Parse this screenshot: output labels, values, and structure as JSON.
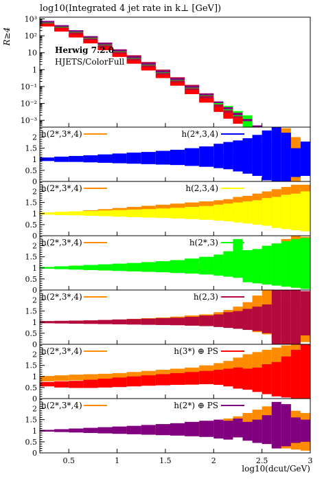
{
  "chart_data": {
    "type": "area",
    "title": "log10(Integrated 4 jet rate in k⊥ [GeV])",
    "xlabel": "log10(dcut/GeV)",
    "xlim": [
      0.2,
      3.0
    ],
    "x_ticks": [
      "0.5",
      "1",
      "1.5",
      "2",
      "2.5",
      "3"
    ],
    "x_tick_values": [
      0.5,
      1.0,
      1.5,
      2.0,
      2.5,
      3.0
    ],
    "bin_edges": [
      0.2,
      0.35,
      0.5,
      0.65,
      0.8,
      0.95,
      1.1,
      1.25,
      1.4,
      1.55,
      1.7,
      1.85,
      2.0,
      2.1,
      2.2,
      2.3,
      2.4,
      2.5,
      2.6,
      2.7,
      2.8,
      2.9,
      3.0
    ],
    "colors": {
      "reference": "#ff8c00",
      "blue": "#0000ff",
      "yellow": "#ffff00",
      "green": "#00ff00",
      "crimson": "#b40a3c",
      "red": "#ff0000",
      "purple": "#800080"
    },
    "main": {
      "ylabel": "R≥4",
      "log_y": true,
      "ylim_exp": [
        -3.4,
        3.1
      ],
      "y_ticks": [
        "10³",
        "10²",
        "10",
        "1",
        "10⁻¹",
        "10⁻²",
        "10⁻³"
      ],
      "y_tick_exponents": [
        3,
        2,
        1,
        0,
        -1,
        -2,
        -3
      ],
      "annotation_line1": "Herwig 7.2.0",
      "annotation_line2": "HJETS/ColorFull",
      "annotation_color": "#888888",
      "series": [
        {
          "key": "crimson",
          "log_lo": [
            2.6,
            2.3,
            1.95,
            1.6,
            1.2,
            0.8,
            0.4,
            0.0,
            -0.45,
            -0.9,
            -1.35,
            -1.85,
            -2.35,
            -2.7,
            -3.1,
            -3.5,
            -3.5,
            -3.5,
            -3.5,
            -3.5,
            -3.5,
            -3.5
          ],
          "log_hi": [
            2.85,
            2.6,
            2.3,
            1.95,
            1.6,
            1.2,
            0.85,
            0.45,
            0.0,
            -0.45,
            -0.9,
            -1.4,
            -1.9,
            -2.25,
            -2.65,
            -3.05,
            -3.3,
            -3.5,
            -3.5,
            -3.5,
            -3.5,
            -3.5
          ]
        },
        {
          "key": "red",
          "log_lo": [
            2.55,
            2.25,
            1.9,
            1.55,
            1.15,
            0.75,
            0.35,
            -0.05,
            -0.5,
            -0.95,
            -1.45,
            -1.95,
            -2.5,
            -2.9,
            -3.2,
            -3.5,
            -3.5,
            -3.5,
            -3.5,
            -3.5,
            -3.5,
            -3.5
          ],
          "log_hi": [
            2.7,
            2.45,
            2.1,
            1.75,
            1.35,
            0.95,
            0.55,
            0.15,
            -0.3,
            -0.75,
            -1.2,
            -1.7,
            -2.2,
            -2.55,
            -2.85,
            -3.2,
            -3.5,
            -3.5,
            -3.5,
            -3.5,
            -3.5,
            -3.5
          ]
        },
        {
          "key": "green",
          "log_lo": [
            2.75,
            2.5,
            2.2,
            1.85,
            1.45,
            1.05,
            0.65,
            0.25,
            -0.2,
            -0.65,
            -1.1,
            -1.55,
            -2.05,
            -2.4,
            -2.75,
            -3.5,
            -3.5,
            -3.5,
            -3.5,
            -3.5,
            -3.5,
            -3.5
          ],
          "log_hi": [
            2.82,
            2.58,
            2.28,
            1.92,
            1.52,
            1.12,
            0.72,
            0.32,
            -0.13,
            -0.58,
            -1.03,
            -1.48,
            -1.95,
            -2.15,
            -2.45,
            -2.7,
            -3.5,
            -3.5,
            -3.5,
            -3.5,
            -3.5,
            -3.5
          ]
        },
        {
          "key": "purple",
          "log_lo": [
            2.78,
            2.53,
            2.23,
            1.88,
            1.48,
            1.08,
            0.68,
            0.28,
            -0.17,
            -0.62,
            -1.07,
            -1.52,
            -1.98,
            -2.35,
            -2.7,
            -3.05,
            -3.5,
            -3.5,
            -3.5,
            -3.5,
            -3.5,
            -3.5
          ],
          "log_hi": [
            2.88,
            2.63,
            2.33,
            1.98,
            1.58,
            1.18,
            0.78,
            0.38,
            -0.07,
            -0.52,
            -0.97,
            -1.42,
            -1.88,
            -2.22,
            -2.55,
            -2.92,
            -3.3,
            -3.5,
            -3.5,
            -3.5,
            -3.5,
            -3.5
          ]
        }
      ]
    },
    "ratio_panels": [
      {
        "label_left": "h(2*,3*,4)",
        "label_right": "h(2*,3,4)",
        "color_key": "blue",
        "lo": [
          0.92,
          0.88,
          0.88,
          0.86,
          0.84,
          0.82,
          0.8,
          0.78,
          0.76,
          0.74,
          0.7,
          0.66,
          0.6,
          0.55,
          0.45,
          0.35,
          0.25,
          0.05,
          0.0,
          0.0,
          0.2,
          0.25
        ],
        "hi": [
          1.08,
          1.12,
          1.15,
          1.18,
          1.22,
          1.26,
          1.3,
          1.33,
          1.38,
          1.43,
          1.5,
          1.58,
          1.7,
          1.78,
          1.85,
          1.95,
          2.1,
          2.3,
          2.5,
          2.2,
          1.5,
          1.8
        ],
        "ref_lo": [
          0.98,
          0.98,
          0.97,
          0.97,
          0.96,
          0.96,
          0.95,
          0.95,
          0.94,
          0.93,
          0.92,
          0.9,
          0.86,
          0.8,
          0.7,
          0.6,
          0.55,
          0.35,
          0.15,
          0.0,
          0.0,
          0.0
        ],
        "ref_hi": [
          1.02,
          1.02,
          1.03,
          1.03,
          1.04,
          1.04,
          1.05,
          1.05,
          1.06,
          1.07,
          1.08,
          1.1,
          1.14,
          1.2,
          1.3,
          1.4,
          1.5,
          1.65,
          1.9,
          2.4,
          2.0,
          0.0
        ]
      },
      {
        "label_left": "h(2*,3*,4)",
        "label_right": "h(2,3,4)",
        "color_key": "yellow",
        "lo": [
          0.95,
          0.93,
          0.92,
          0.9,
          0.88,
          0.86,
          0.84,
          0.82,
          0.8,
          0.78,
          0.75,
          0.72,
          0.68,
          0.65,
          0.6,
          0.55,
          0.5,
          0.45,
          0.35,
          0.3,
          0.25,
          0.2
        ],
        "hi": [
          1.05,
          1.08,
          1.1,
          1.12,
          1.14,
          1.16,
          1.18,
          1.2,
          1.23,
          1.26,
          1.3,
          1.34,
          1.4,
          1.45,
          1.5,
          1.55,
          1.6,
          1.7,
          1.75,
          1.85,
          1.9,
          2.0
        ],
        "ref_lo": [
          0.98,
          0.97,
          0.96,
          0.95,
          0.94,
          0.93,
          0.92,
          0.91,
          0.9,
          0.88,
          0.86,
          0.84,
          0.8,
          0.78,
          0.74,
          0.7,
          0.66,
          0.6,
          0.5,
          0.35,
          0.25,
          0.2
        ],
        "ref_hi": [
          1.02,
          1.06,
          1.1,
          1.15,
          1.2,
          1.25,
          1.3,
          1.35,
          1.4,
          1.45,
          1.5,
          1.55,
          1.6,
          1.65,
          1.75,
          1.8,
          1.9,
          2.0,
          2.1,
          2.2,
          2.3,
          2.3
        ]
      },
      {
        "label_left": "h(2*,3*,4)",
        "label_right": "h(2*,3)",
        "color_key": "green",
        "lo": [
          0.96,
          0.94,
          0.92,
          0.9,
          0.88,
          0.86,
          0.84,
          0.82,
          0.8,
          0.77,
          0.74,
          0.7,
          0.65,
          0.6,
          0.55,
          0.35,
          0.3,
          0.25,
          0.2,
          0.15,
          0.1,
          0.05
        ],
        "hi": [
          1.04,
          1.07,
          1.1,
          1.13,
          1.16,
          1.19,
          1.22,
          1.26,
          1.3,
          1.35,
          1.42,
          1.5,
          1.6,
          1.75,
          2.3,
          1.8,
          1.85,
          2.0,
          2.1,
          2.2,
          2.3,
          2.35
        ],
        "ref_lo": [
          0.97,
          0.96,
          0.95,
          0.94,
          0.93,
          0.92,
          0.91,
          0.9,
          0.88,
          0.86,
          0.84,
          0.82,
          0.78,
          0.74,
          0.7,
          0.65,
          0.6,
          0.55,
          0.45,
          0.35,
          0.25,
          0.15
        ],
        "ref_hi": [
          1.03,
          1.04,
          1.05,
          1.06,
          1.07,
          1.08,
          1.1,
          1.12,
          1.14,
          1.17,
          1.2,
          1.24,
          1.3,
          1.35,
          1.4,
          1.5,
          1.7,
          1.9,
          2.1,
          2.3,
          2.5,
          2.4
        ]
      },
      {
        "label_left": "h(2*,3*,4)",
        "label_right": "h(2,3)",
        "color_key": "crimson",
        "lo": [
          0.95,
          0.94,
          0.93,
          0.92,
          0.91,
          0.9,
          0.89,
          0.88,
          0.87,
          0.86,
          0.84,
          0.82,
          0.78,
          0.74,
          0.7,
          0.65,
          0.6,
          0.5,
          0.0,
          0.0,
          0.0,
          0.4
        ],
        "hi": [
          1.05,
          1.06,
          1.07,
          1.08,
          1.1,
          1.12,
          1.14,
          1.16,
          1.18,
          1.2,
          1.24,
          1.3,
          1.35,
          1.45,
          1.5,
          1.6,
          1.7,
          1.8,
          2.7,
          2.6,
          2.5,
          2.4
        ],
        "ref_lo": [
          0.98,
          0.97,
          0.96,
          0.95,
          0.94,
          0.93,
          0.92,
          0.91,
          0.9,
          0.89,
          0.88,
          0.86,
          0.82,
          0.78,
          0.72,
          0.65,
          0.55,
          0.45,
          0.3,
          0.2,
          0.15,
          0.1
        ],
        "ref_hi": [
          1.02,
          1.04,
          1.06,
          1.08,
          1.1,
          1.12,
          1.15,
          1.18,
          1.21,
          1.25,
          1.3,
          1.35,
          1.45,
          1.55,
          1.7,
          1.9,
          2.2,
          2.5,
          2.3,
          2.0,
          1.8,
          1.6
        ]
      },
      {
        "label_left": "h(2*,3*,4)",
        "label_right": "h(3*) ⊕ PS",
        "color_key": "red",
        "lo": [
          0.55,
          0.5,
          0.48,
          0.48,
          0.5,
          0.52,
          0.55,
          0.58,
          0.6,
          0.62,
          0.63,
          0.65,
          0.62,
          0.55,
          0.45,
          0.4,
          0.3,
          0.2,
          0.1,
          0.05,
          0.0,
          0.0
        ],
        "hi": [
          0.75,
          0.78,
          0.8,
          0.85,
          0.9,
          0.95,
          1.0,
          1.05,
          1.1,
          1.15,
          1.2,
          1.25,
          1.3,
          1.35,
          1.4,
          1.35,
          1.4,
          1.55,
          1.65,
          1.9,
          2.2,
          2.5
        ],
        "ref_lo": [
          0.78,
          0.8,
          0.82,
          0.84,
          0.86,
          0.88,
          0.9,
          0.9,
          0.9,
          0.9,
          0.88,
          0.85,
          0.8,
          0.72,
          0.6,
          0.5,
          0.4,
          0.3,
          0.2,
          0.1,
          0.05,
          0.0
        ],
        "ref_hi": [
          1.02,
          1.05,
          1.08,
          1.1,
          1.12,
          1.15,
          1.2,
          1.25,
          1.3,
          1.35,
          1.4,
          1.5,
          1.6,
          1.7,
          1.85,
          2.0,
          2.1,
          2.2,
          2.3,
          2.4,
          2.5,
          2.5
        ]
      },
      {
        "label_left": "h(2*,3*,4)",
        "label_right": "h(2*) ⊕ PS",
        "color_key": "purple",
        "lo": [
          0.96,
          0.94,
          0.92,
          0.9,
          0.88,
          0.86,
          0.84,
          0.82,
          0.8,
          0.78,
          0.75,
          0.72,
          0.65,
          0.6,
          0.7,
          0.55,
          0.45,
          0.4,
          0.2,
          0.3,
          0.45,
          0.5
        ],
        "hi": [
          1.04,
          1.07,
          1.1,
          1.13,
          1.16,
          1.19,
          1.22,
          1.26,
          1.3,
          1.34,
          1.4,
          1.45,
          1.5,
          1.45,
          1.55,
          1.4,
          1.5,
          1.7,
          2.3,
          2.2,
          1.6,
          1.5
        ],
        "ref_lo": [
          0.98,
          0.97,
          0.96,
          0.95,
          0.94,
          0.93,
          0.92,
          0.91,
          0.9,
          0.88,
          0.86,
          0.84,
          0.8,
          0.75,
          0.7,
          0.6,
          0.5,
          0.4,
          0.3,
          0.2,
          0.15,
          0.1
        ],
        "ref_hi": [
          1.02,
          1.04,
          1.06,
          1.08,
          1.1,
          1.13,
          1.16,
          1.2,
          1.24,
          1.28,
          1.33,
          1.38,
          1.45,
          1.55,
          1.65,
          1.8,
          1.95,
          2.1,
          2.2,
          2.0,
          1.9,
          1.8
        ]
      }
    ],
    "ratio_ylim": [
      0,
      2.45
    ],
    "ratio_y_ticks": [
      "0",
      "0.5",
      "1",
      "1.5",
      "2"
    ],
    "ratio_y_tick_values": [
      0,
      0.5,
      1.0,
      1.5,
      2.0
    ]
  }
}
